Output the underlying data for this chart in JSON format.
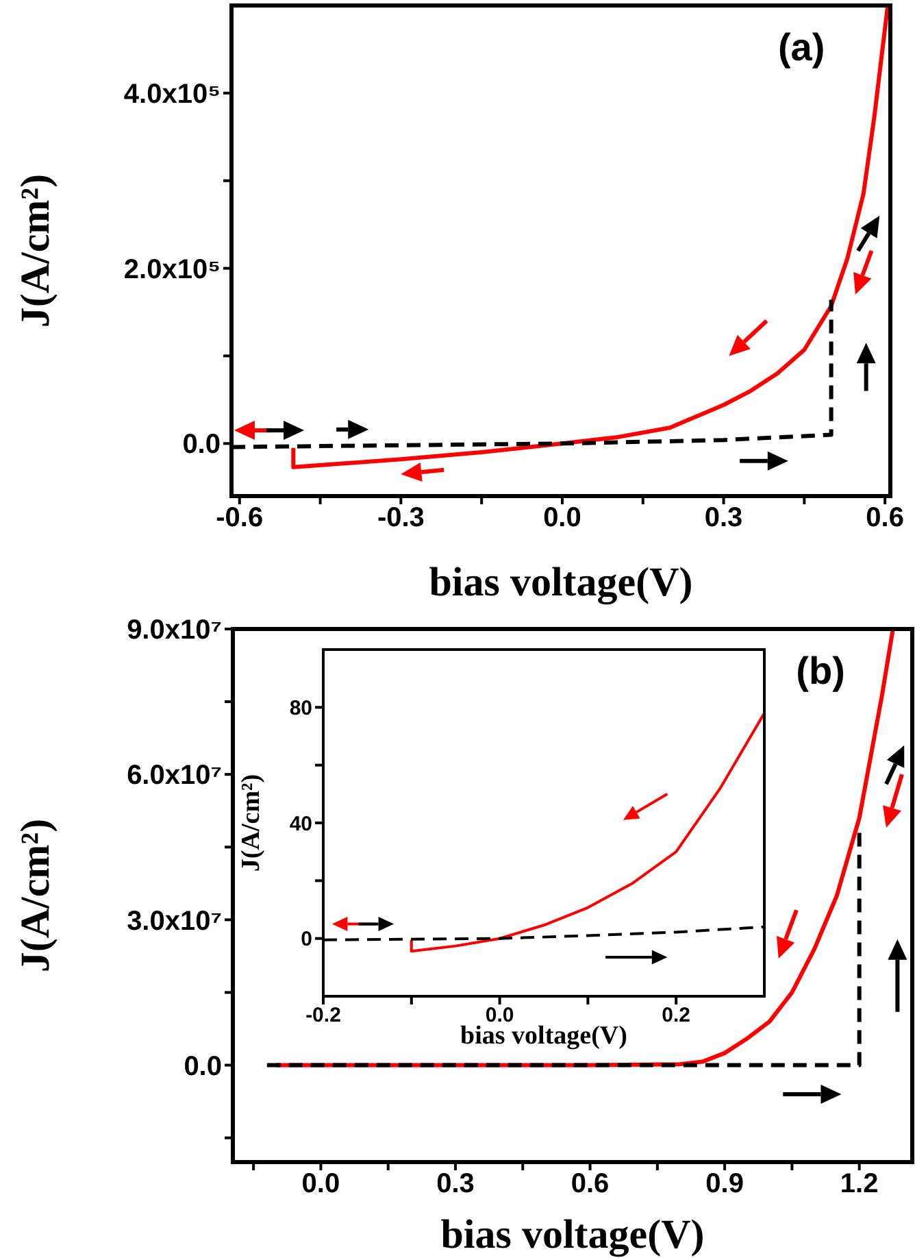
{
  "chart_data": [
    {
      "type": "line",
      "annotations": [
        "(a)"
      ],
      "xlabel": "bias voltage(V)",
      "ylabel": "J(A/cm²)",
      "xlim": [
        -0.615,
        0.61
      ],
      "ylim": [
        -60000,
        500000
      ],
      "xticks": [
        -0.6,
        {
          "value": -0.45,
          "label": null
        },
        -0.3,
        {
          "value": -0.15,
          "label": null
        },
        {
          "value": 0,
          "label": "0.0"
        },
        {
          "value": 0.15,
          "label": null
        },
        0.3,
        {
          "value": 0.45,
          "label": null
        },
        0.6
      ],
      "yticks": [
        {
          "value": 0,
          "label": "0.0"
        },
        {
          "value": 100000,
          "label": null
        },
        {
          "value": 200000,
          "label": "2.0x10⁵"
        },
        {
          "value": 300000,
          "label": null
        },
        {
          "value": 400000,
          "label": "4.0x10⁵"
        }
      ],
      "series": [
        {
          "color": "#ff0000",
          "line_style": "solid",
          "x": [
            -0.5,
            -0.5,
            -0.3,
            -0.15,
            0,
            0.1,
            0.2,
            0.3,
            0.35,
            0.4,
            0.45,
            0.5,
            0.53,
            0.56,
            0.58,
            0.605
          ],
          "values": [
            -5000,
            -27000,
            -18000,
            -10000,
            0,
            7000,
            18000,
            44000,
            60000,
            80000,
            107000,
            157000,
            211000,
            285000,
            372000,
            499000
          ]
        },
        {
          "color": "#000000",
          "line_style": "dashed",
          "x": [
            -0.615,
            -0.3,
            0,
            0.3,
            0.5,
            0.5
          ],
          "values": [
            -4000,
            -2000,
            0,
            4000,
            10000,
            164000
          ]
        }
      ]
    },
    {
      "type": "line",
      "annotations": [
        "(b)"
      ],
      "xlabel": "bias voltage(V)",
      "ylabel": "J(A/cm²)",
      "xlim": [
        -0.196,
        1.318
      ],
      "ylim": [
        -20000000,
        90000000
      ],
      "xticks": [
        {
          "value": -0.15,
          "label": null
        },
        {
          "value": 0,
          "label": "0.0"
        },
        {
          "value": 0.15,
          "label": null
        },
        0.3,
        {
          "value": 0.45,
          "label": null
        },
        0.6,
        {
          "value": 0.75,
          "label": null
        },
        0.9,
        {
          "value": 1.05,
          "label": null
        },
        1.2
      ],
      "yticks": [
        {
          "value": -15000000,
          "label": null
        },
        {
          "value": 0,
          "label": "0.0"
        },
        {
          "value": 15000000,
          "label": null
        },
        {
          "value": 30000000,
          "label": "3.0x10⁷"
        },
        {
          "value": 45000000,
          "label": null
        },
        {
          "value": 60000000,
          "label": "6.0x10⁷"
        },
        {
          "value": 75000000,
          "label": null
        },
        {
          "value": 90000000,
          "label": "9.0x10⁷"
        }
      ],
      "series": [
        {
          "color": "#ff0000",
          "line_style": "solid",
          "x": [
            -0.1,
            0.6,
            0.8,
            0.85,
            0.9,
            0.95,
            1.0,
            1.05,
            1.1,
            1.15,
            1.2,
            1.25,
            1.275
          ],
          "values": [
            0,
            0,
            200000,
            700000,
            2500000,
            5500000,
            9000000,
            15000000,
            24000000,
            35000000,
            51000000,
            76000000,
            90000000
          ]
        },
        {
          "color": "#000000",
          "line_style": "dashed",
          "x": [
            -0.12,
            1.2,
            1.2
          ],
          "values": [
            0,
            0,
            48000000
          ]
        }
      ]
    },
    {
      "type": "line",
      "xlabel": "bias voltage(V)",
      "ylabel": "J(A/cm²)",
      "xlim": [
        -0.2,
        0.3
      ],
      "ylim": [
        -20,
        100
      ],
      "xticks": [
        -0.2,
        {
          "value": -0.1,
          "label": null
        },
        {
          "value": 0,
          "label": "0.0"
        },
        {
          "value": 0.1,
          "label": null
        },
        0.2
      ],
      "yticks": [
        0,
        {
          "value": 20,
          "label": null
        },
        40,
        {
          "value": 60,
          "label": null
        },
        80
      ],
      "series": [
        {
          "color": "#ff0000",
          "line_style": "solid",
          "x": [
            -0.1,
            -0.1,
            -0.05,
            0,
            0.05,
            0.1,
            0.15,
            0.2,
            0.25,
            0.3
          ],
          "values": [
            -0.5,
            -4.4,
            -2.6,
            0,
            4.6,
            10.7,
            19,
            30,
            52,
            78
          ]
        },
        {
          "color": "#000000",
          "line_style": "dashed",
          "x": [
            -0.2,
            0,
            0.1,
            0.2,
            0.3
          ],
          "values": [
            -0.5,
            0,
            1,
            2.2,
            4
          ]
        }
      ]
    }
  ]
}
